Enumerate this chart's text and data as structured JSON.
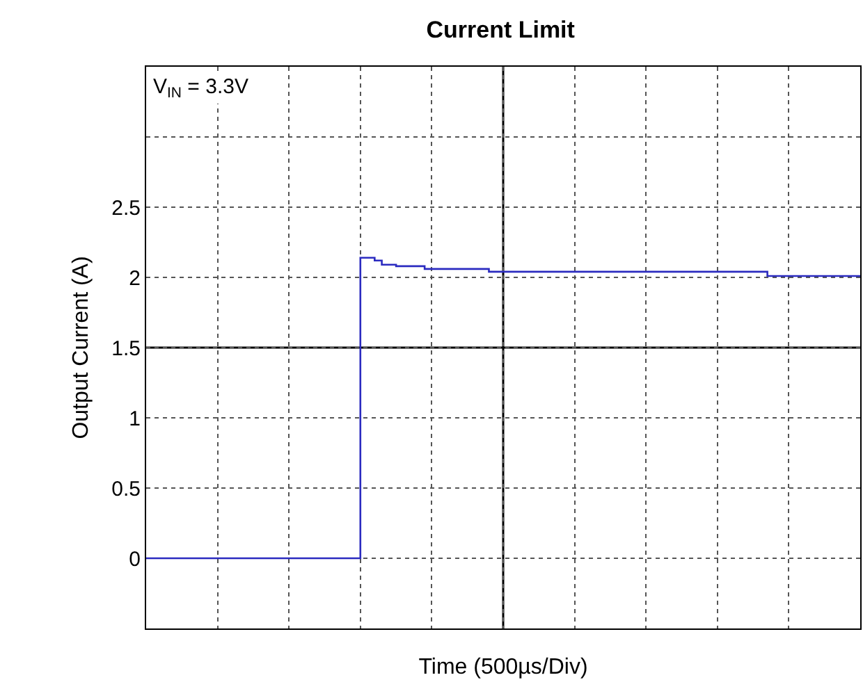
{
  "chart_data": {
    "type": "step",
    "title": "Current Limit",
    "xlabel": "Time (500µs/Div)",
    "ylabel": "Output Current (A)",
    "annotations": [
      "V$_{IN}$ = 3.3V"
    ],
    "categories": [
      null,
      null,
      null,
      null,
      null,
      null,
      null,
      null,
      null,
      null,
      null,
      null,
      null,
      null,
      null,
      null,
      null,
      null,
      null,
      null,
      null,
      null,
      null,
      null,
      null,
      null,
      null,
      null,
      null,
      null,
      null,
      null,
      null,
      null,
      null,
      null,
      null,
      null,
      null,
      null,
      null,
      null,
      null,
      null,
      null,
      null,
      null,
      null,
      null,
      null,
      null,
      null,
      null,
      null,
      null,
      null,
      null,
      null,
      null,
      null,
      null,
      null,
      null,
      null,
      null,
      null,
      null,
      null,
      null,
      null,
      null,
      null,
      null,
      null,
      null,
      null,
      null,
      null,
      null,
      null,
      null,
      null,
      null,
      null,
      null,
      null,
      null,
      null,
      null,
      null,
      null,
      null,
      null,
      null,
      null,
      null,
      null,
      null,
      null,
      null,
      null
    ],
    "series": [
      {
        "color": "#2b2bc0",
        "values": [
          0,
          0,
          0,
          0,
          0,
          0,
          0,
          0,
          0,
          0,
          0,
          0,
          0,
          0,
          0,
          0,
          0,
          0,
          0,
          0,
          0,
          0,
          0,
          0,
          0,
          0,
          0,
          0,
          0,
          0,
          2.14,
          2.14,
          2.12,
          2.09,
          2.09,
          2.08,
          2.08,
          2.08,
          2.08,
          2.06,
          2.06,
          2.06,
          2.06,
          2.06,
          2.06,
          2.06,
          2.06,
          2.06,
          2.04,
          2.04,
          2.04,
          2.04,
          2.04,
          2.04,
          2.04,
          2.04,
          2.04,
          2.04,
          2.04,
          2.04,
          2.04,
          2.04,
          2.04,
          2.04,
          2.04,
          2.04,
          2.04,
          2.04,
          2.04,
          2.04,
          2.04,
          2.04,
          2.04,
          2.04,
          2.04,
          2.04,
          2.04,
          2.04,
          2.04,
          2.04,
          2.04,
          2.04,
          2.04,
          2.04,
          2.04,
          2.04,
          2.04,
          2.01,
          2.01,
          2.01,
          2.01,
          2.01,
          2.01,
          2.01,
          2.01,
          2.01,
          2.01,
          2.01,
          2.01,
          2.01,
          2.01
        ]
      }
    ],
    "ylim": [
      -0.5,
      3.5
    ],
    "yticks": [
      {
        "value": -0.5,
        "label": null
      },
      0,
      0.5,
      1,
      1.5,
      2,
      2.5,
      {
        "value": 3,
        "label": null
      },
      {
        "value": 3.5,
        "label": null
      }
    ],
    "grid": true,
    "marker": "none",
    "line_style": "solid"
  }
}
